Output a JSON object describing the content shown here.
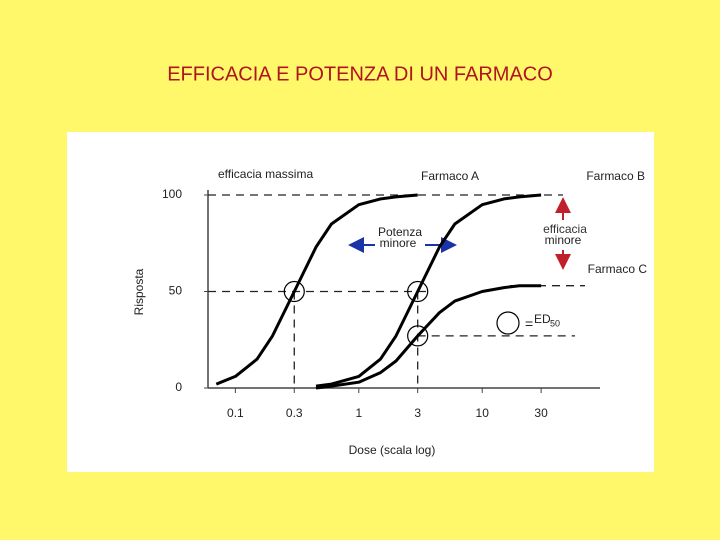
{
  "chart_data": {
    "type": "line",
    "title": "EFFICACIA  E  POTENZA  DI  UN  FARMACO",
    "y_label": "Risposta",
    "x_label": "Dose (scala log)",
    "log_x": true,
    "x": [
      0.07,
      0.1,
      0.15,
      0.2,
      0.3,
      0.45,
      0.6,
      1,
      1.5,
      2,
      3,
      4.5,
      6,
      10,
      15,
      20,
      30
    ],
    "series": [
      {
        "name": "Farmaco A",
        "color": "#000000",
        "values": [
          2,
          6,
          15,
          27,
          50,
          73,
          85,
          95,
          98,
          99,
          100,
          null,
          null,
          null,
          null,
          null,
          null
        ]
      },
      {
        "name": "Farmaco B",
        "color": "#000000",
        "values": [
          null,
          null,
          null,
          null,
          null,
          1,
          2,
          6,
          15,
          27,
          50,
          73,
          85,
          95,
          98,
          99,
          100
        ]
      },
      {
        "name": "Farmaco C",
        "color": "#000000",
        "values": [
          null,
          null,
          null,
          null,
          null,
          0,
          1,
          3,
          8,
          14,
          27,
          39,
          45,
          50,
          52,
          53,
          53
        ]
      }
    ],
    "xlim": [
      0.06,
      90
    ],
    "ylim": [
      0,
      100
    ],
    "xticks": [
      0.1,
      0.3,
      1,
      3,
      10,
      30
    ],
    "yticks": [
      0,
      50,
      100
    ],
    "annotations": {
      "max_efficacy": "efficacia massima",
      "lower_potency": [
        "Potenza",
        "minore"
      ],
      "lower_efficacy": [
        "efficacia",
        "minore"
      ],
      "ed_symbol": "=",
      "ed_main": "ED",
      "ed_sub": "50"
    }
  }
}
